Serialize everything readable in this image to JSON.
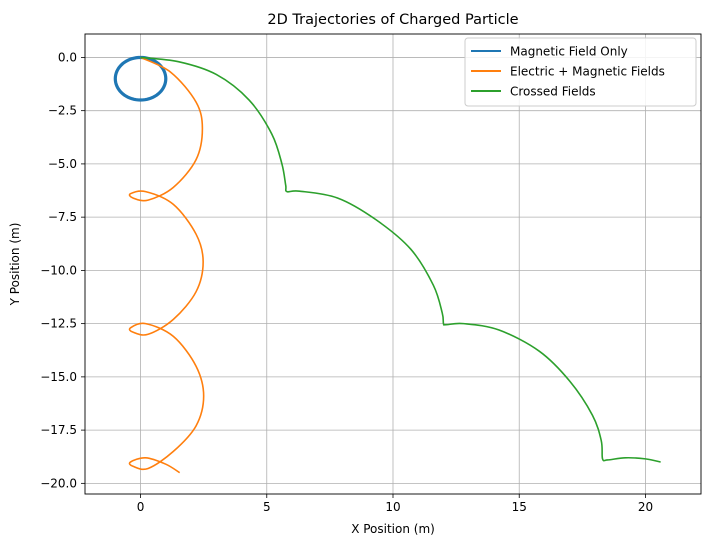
{
  "chart_data": {
    "type": "line",
    "title": "2D Trajectories of Charged Particle",
    "xlabel": "X Position (m)",
    "ylabel": "Y Position (m)",
    "xlim": [
      -2.2,
      22.2
    ],
    "ylim": [
      -20.5,
      1.1
    ],
    "xticks": [
      0,
      5,
      10,
      15,
      20
    ],
    "xtick_labels": [
      "0",
      "5",
      "10",
      "15",
      "20"
    ],
    "yticks": [
      0.0,
      -2.5,
      -5.0,
      -7.5,
      -10.0,
      -12.5,
      -15.0,
      -17.5,
      -20.0
    ],
    "ytick_labels": [
      "0.0",
      "−2.5",
      "−5.0",
      "−7.5",
      "−10.0",
      "−12.5",
      "−15.0",
      "−17.5",
      "−20.0"
    ],
    "grid": true,
    "legend_position": "top-right",
    "series": [
      {
        "name": "Magnetic Field Only",
        "color": "#1f77b4",
        "description": "circle centered (0,-1) radius 1, traced repeatedly",
        "x": [
          0,
          0.5,
          0.866,
          1,
          0.866,
          0.5,
          0,
          -0.5,
          -0.866,
          -1,
          -0.866,
          -0.5,
          0
        ],
        "y": [
          0,
          -0.134,
          -0.5,
          -1,
          -1.5,
          -1.866,
          -2,
          -1.866,
          -1.5,
          -1,
          -0.5,
          -0.134,
          0
        ]
      },
      {
        "name": "Electric + Magnetic Fields",
        "color": "#ff7f0e",
        "description": "looping drift downward",
        "x": [
          0,
          1.2,
          2.2,
          2.45,
          2.2,
          1.3,
          0.3,
          -0.3,
          -0.4,
          0.2,
          1.3,
          2.2,
          2.48,
          2.2,
          1.3,
          0.3,
          -0.3,
          -0.4,
          0.2,
          1.3,
          2.2,
          2.5,
          2.2,
          1.3,
          0.3,
          -0.3,
          -0.4,
          0.2,
          1.0,
          1.55
        ],
        "y": [
          0,
          -0.7,
          -2.1,
          -3.35,
          -4.8,
          -6.1,
          -6.7,
          -6.6,
          -6.4,
          -6.3,
          -6.9,
          -8.3,
          -9.6,
          -11.0,
          -12.3,
          -13.0,
          -12.9,
          -12.7,
          -12.5,
          -13.1,
          -14.5,
          -15.9,
          -17.3,
          -18.5,
          -19.3,
          -19.2,
          -19.0,
          -18.8,
          -19.1,
          -19.5
        ]
      },
      {
        "name": "Crossed Fields",
        "color": "#2ca02c",
        "description": "cycloid-like drift along +x and -y",
        "x": [
          0,
          1.5,
          3.0,
          4.3,
          5.2,
          5.6,
          5.75,
          5.8,
          6.3,
          7.8,
          9.3,
          10.7,
          11.6,
          11.95,
          12.0,
          12.1,
          12.8,
          14.2,
          15.8,
          17.0,
          17.9,
          18.25,
          18.3,
          18.5,
          19.2,
          20.0,
          20.6
        ],
        "y": [
          0,
          -0.2,
          -0.8,
          -2.0,
          -3.6,
          -5.0,
          -6.0,
          -6.3,
          -6.28,
          -6.6,
          -7.6,
          -9.0,
          -10.7,
          -12.0,
          -12.5,
          -12.55,
          -12.5,
          -12.8,
          -13.8,
          -15.2,
          -16.8,
          -18.0,
          -18.85,
          -18.9,
          -18.8,
          -18.85,
          -19.0
        ]
      }
    ]
  }
}
